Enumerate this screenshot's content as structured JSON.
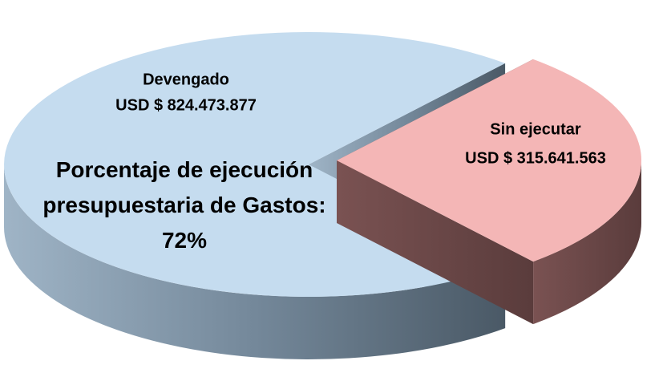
{
  "chart_data": {
    "type": "pie3d",
    "categories": [
      "Devengado",
      "Sin ejecutar"
    ],
    "values": [
      824473877,
      315641563
    ],
    "value_labels": [
      "USD $ 824.473.877",
      "USD $ 315.641.563"
    ],
    "colors": [
      "#c5dcef",
      "#f4b6b6"
    ],
    "annotation": "Porcentaje de ejecución presupuestaria de Gastos: 72%"
  }
}
